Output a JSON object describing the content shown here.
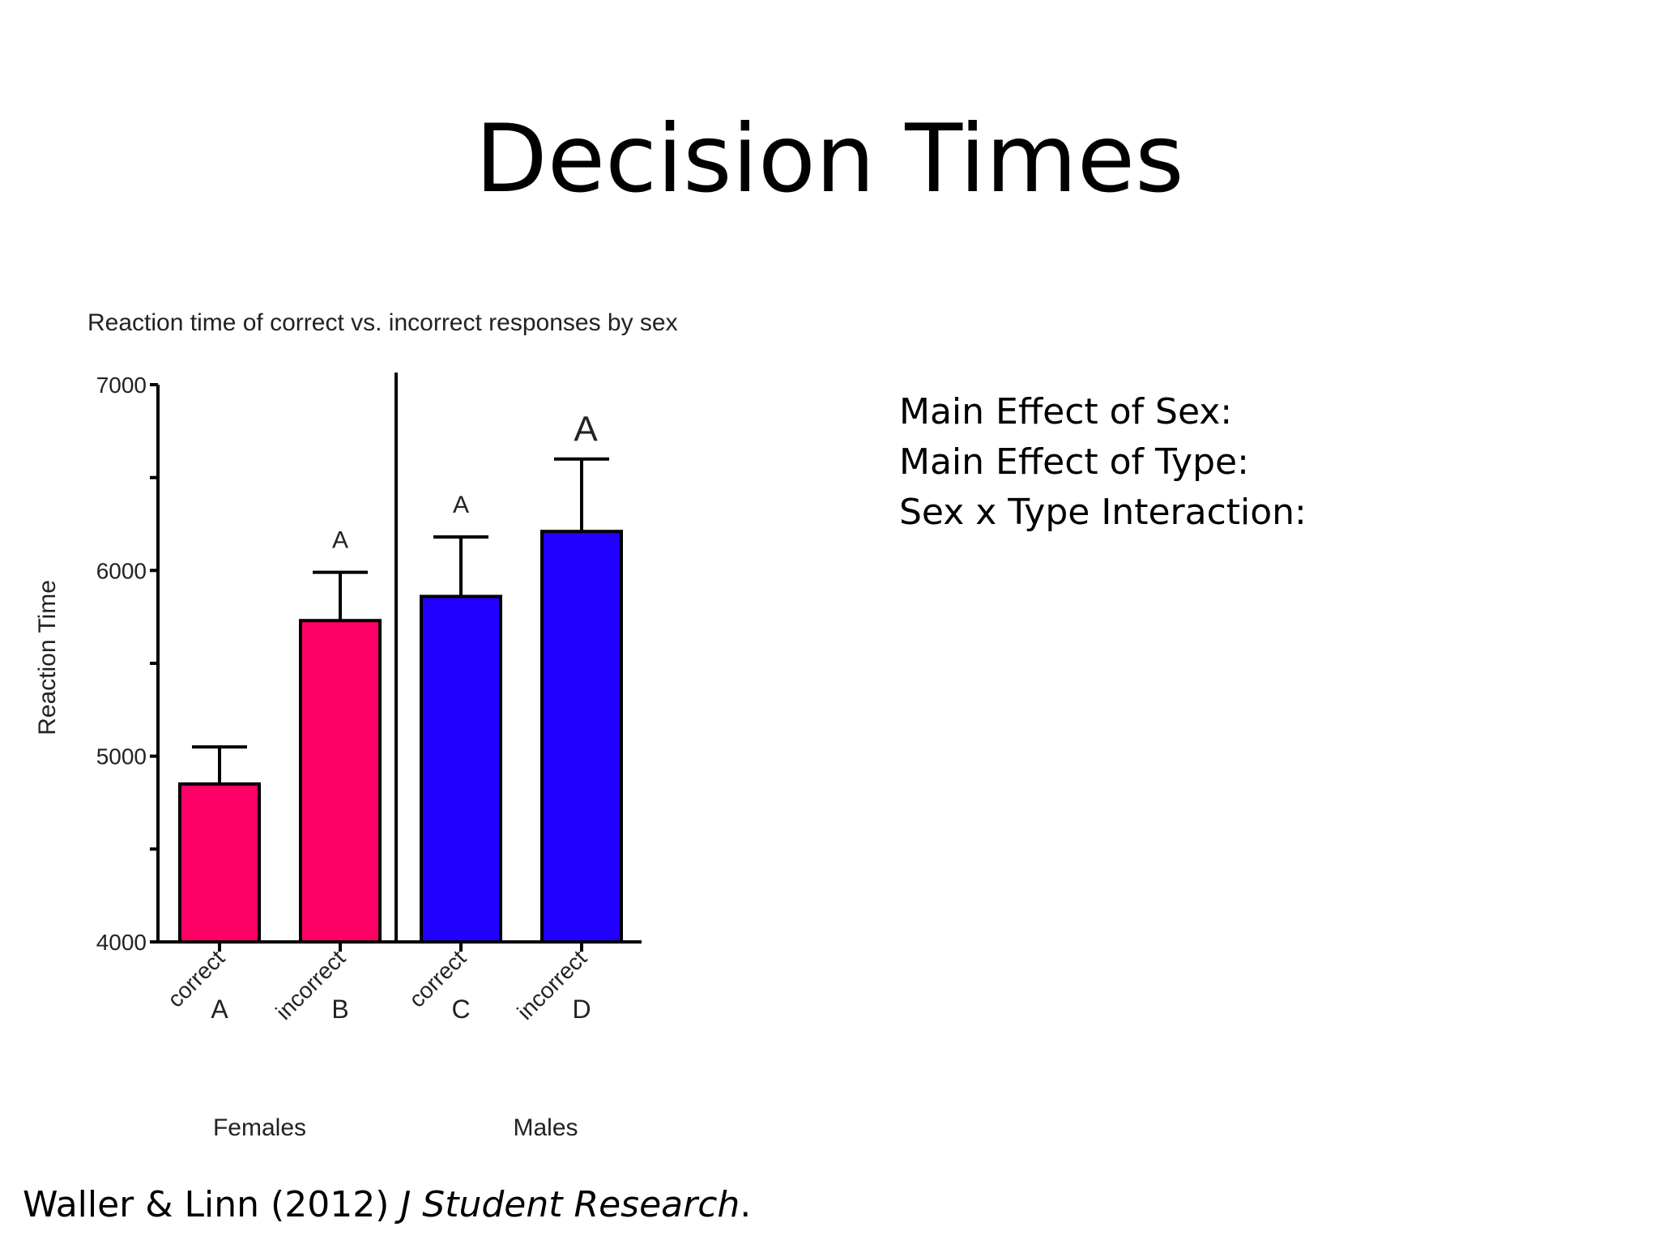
{
  "slide": {
    "title": "Decision Times",
    "effects": [
      "Main Effect of Sex:",
      "Main Effect of Type:",
      "Sex x Type Interaction:"
    ],
    "citation": {
      "authors": "Waller & Linn (2012) ",
      "journal": "J Student Research",
      "end": "."
    }
  },
  "chart_data": {
    "type": "bar",
    "title": "Reaction time of correct vs. incorrect responses by sex",
    "ylabel": "Reaction Time",
    "ylim": [
      4000,
      7000
    ],
    "yticks": [
      4000,
      5000,
      6000,
      7000
    ],
    "categories": [
      "correct",
      "incorrect",
      "correct",
      "incorrect"
    ],
    "category_letters": [
      "A",
      "B",
      "C",
      "D"
    ],
    "groups": [
      {
        "name": "Females",
        "color": "#ff0066",
        "bars": [
          0,
          1
        ]
      },
      {
        "name": "Males",
        "color": "#2200ff",
        "bars": [
          2,
          3
        ]
      }
    ],
    "values": [
      4850,
      5730,
      5860,
      6210
    ],
    "error_upper": [
      5050,
      5990,
      6180,
      6600
    ],
    "significance_labels": [
      "",
      "A",
      "A",
      "A"
    ]
  }
}
